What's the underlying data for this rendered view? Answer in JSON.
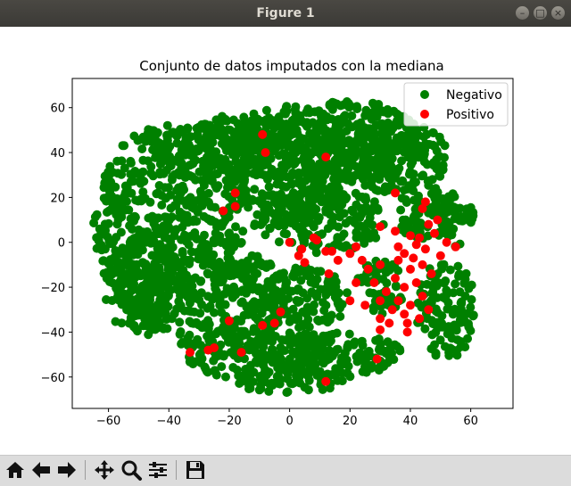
{
  "window": {
    "title": "Figure 1"
  },
  "window_buttons": [
    {
      "name": "minimize-button",
      "icon": "minimize-icon",
      "glyph": "–"
    },
    {
      "name": "maximize-button",
      "icon": "maximize-icon",
      "glyph": "□"
    },
    {
      "name": "close-button",
      "icon": "close-icon",
      "glyph": "×"
    }
  ],
  "toolbar": {
    "buttons": [
      {
        "name": "home-button",
        "icon": "home-icon"
      },
      {
        "name": "back-button",
        "icon": "arrow-left-icon"
      },
      {
        "name": "forward-button",
        "icon": "arrow-right-icon"
      },
      {
        "name": "pan-button",
        "icon": "move-icon"
      },
      {
        "name": "zoom-button",
        "icon": "zoom-icon"
      },
      {
        "name": "configure-subplots-button",
        "icon": "sliders-icon"
      },
      {
        "name": "save-button",
        "icon": "save-icon"
      }
    ]
  },
  "chart_data": {
    "type": "scatter",
    "title": "Conjunto de datos imputados con la mediana",
    "xlabel": "",
    "ylabel": "",
    "xlim": [
      -72,
      74
    ],
    "ylim": [
      -74,
      73
    ],
    "xticks": [
      -60,
      -40,
      -20,
      0,
      20,
      40,
      60
    ],
    "yticks": [
      -60,
      -40,
      -20,
      0,
      20,
      40,
      60
    ],
    "grid": false,
    "legend": "upper-right",
    "series": [
      {
        "name": "Negativo",
        "color": "#008000",
        "regions": [
          {
            "cx": -40,
            "cy": 8,
            "rx": 25,
            "ry": 45
          },
          {
            "cx": -48,
            "cy": -20,
            "rx": 14,
            "ry": 22
          },
          {
            "cx": -25,
            "cy": 40,
            "rx": 20,
            "ry": 13
          },
          {
            "cx": -15,
            "cy": 48,
            "rx": 16,
            "ry": 10
          },
          {
            "cx": 0,
            "cy": 35,
            "rx": 22,
            "ry": 26
          },
          {
            "cx": 20,
            "cy": 45,
            "rx": 24,
            "ry": 18
          },
          {
            "cx": 35,
            "cy": 38,
            "rx": 18,
            "ry": 16
          },
          {
            "cx": 10,
            "cy": 10,
            "rx": 22,
            "ry": 15
          },
          {
            "cx": 45,
            "cy": 15,
            "rx": 10,
            "ry": 15
          },
          {
            "cx": -15,
            "cy": -25,
            "rx": 15,
            "ry": 20
          },
          {
            "cx": 5,
            "cy": -25,
            "rx": 15,
            "ry": 14
          },
          {
            "cx": -10,
            "cy": -50,
            "rx": 24,
            "ry": 12
          },
          {
            "cx": 15,
            "cy": -50,
            "rx": 22,
            "ry": 11
          },
          {
            "cx": 0,
            "cy": -62,
            "rx": 18,
            "ry": 5
          },
          {
            "cx": 52,
            "cy": -30,
            "rx": 10,
            "ry": 22
          },
          {
            "cx": 55,
            "cy": 10,
            "rx": 6,
            "ry": 12
          },
          {
            "cx": -25,
            "cy": -42,
            "rx": 12,
            "ry": 8
          },
          {
            "cx": 30,
            "cy": -20,
            "rx": 8,
            "ry": 12
          }
        ]
      },
      {
        "name": "Positivo",
        "color": "#ff0000",
        "points": [
          [
            -9,
            48
          ],
          [
            -8,
            40
          ],
          [
            12,
            38
          ],
          [
            -18,
            22
          ],
          [
            -18,
            16
          ],
          [
            -22,
            14
          ],
          [
            35,
            22
          ],
          [
            45,
            18
          ],
          [
            44,
            15
          ],
          [
            49,
            10
          ],
          [
            46,
            8
          ],
          [
            30,
            7
          ],
          [
            35,
            5
          ],
          [
            40,
            3
          ],
          [
            43,
            2
          ],
          [
            48,
            4
          ],
          [
            52,
            0
          ],
          [
            55,
            -2
          ],
          [
            50,
            -6
          ],
          [
            45,
            -3
          ],
          [
            42,
            -1
          ],
          [
            38,
            -5
          ],
          [
            36,
            -8
          ],
          [
            40,
            -12
          ],
          [
            44,
            -10
          ],
          [
            47,
            -14
          ],
          [
            42,
            -18
          ],
          [
            38,
            -20
          ],
          [
            35,
            -16
          ],
          [
            32,
            -22
          ],
          [
            36,
            -26
          ],
          [
            40,
            -28
          ],
          [
            44,
            -24
          ],
          [
            46,
            -30
          ],
          [
            38,
            -32
          ],
          [
            34,
            -30
          ],
          [
            30,
            -26
          ],
          [
            28,
            -18
          ],
          [
            26,
            -12
          ],
          [
            24,
            -8
          ],
          [
            22,
            -18
          ],
          [
            25,
            -28
          ],
          [
            20,
            -26
          ],
          [
            30,
            -34
          ],
          [
            33,
            -36
          ],
          [
            39,
            -36
          ],
          [
            43,
            -34
          ],
          [
            30,
            -10
          ],
          [
            36,
            -2
          ],
          [
            41,
            -7
          ],
          [
            8,
            2
          ],
          [
            0,
            0
          ],
          [
            3,
            -6
          ],
          [
            5,
            -9
          ],
          [
            4,
            -3
          ],
          [
            9,
            1
          ],
          [
            14,
            -4
          ],
          [
            16,
            -8
          ],
          [
            13,
            -14
          ],
          [
            12,
            -4
          ],
          [
            20,
            -5
          ],
          [
            22,
            -2
          ],
          [
            -3,
            -31
          ],
          [
            -5,
            -36
          ],
          [
            -9,
            -37
          ],
          [
            -20,
            -35
          ],
          [
            -27,
            -48
          ],
          [
            -25,
            -47
          ],
          [
            -33,
            -49
          ],
          [
            -16,
            -49
          ],
          [
            30,
            -39
          ],
          [
            39,
            -40
          ],
          [
            29,
            -52
          ],
          [
            12,
            -62
          ]
        ]
      }
    ]
  }
}
